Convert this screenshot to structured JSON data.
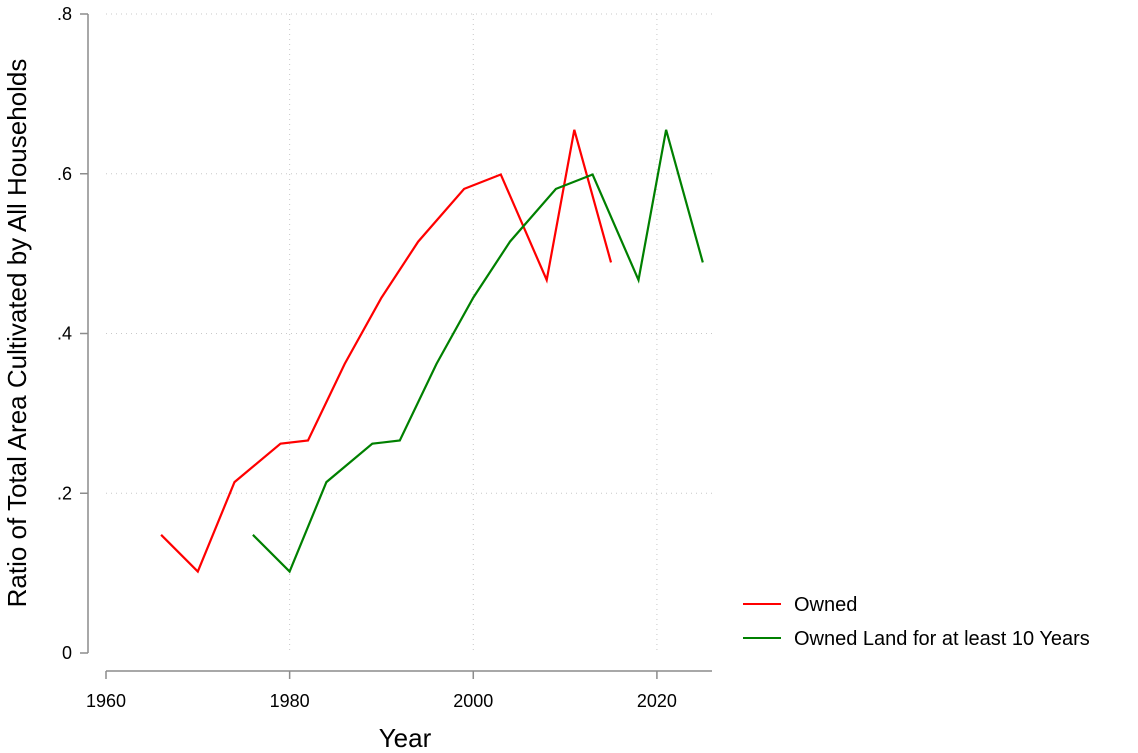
{
  "chart_data": {
    "type": "line",
    "xlabel": "Year",
    "ylabel": "Ratio of Total Area Cultivated by All Households",
    "xlim": [
      1960,
      2026
    ],
    "ylim": [
      0,
      0.8
    ],
    "x_ticks": [
      1960,
      1980,
      2000,
      2020
    ],
    "x_tick_labels": [
      "1960",
      "1980",
      "2000",
      "2020"
    ],
    "y_ticks": [
      0,
      0.2,
      0.4,
      0.6,
      0.8
    ],
    "y_tick_labels": [
      "0",
      ".2",
      ".4",
      ".6",
      ".8"
    ],
    "grid": true,
    "legend_position": "bottom-right",
    "series": [
      {
        "name": "Owned",
        "color": "#ff0000",
        "x": [
          1966,
          1970,
          1974,
          1979,
          1982,
          1986,
          1990,
          1994,
          1999,
          2003,
          2008,
          2011,
          2015
        ],
        "y": [
          0.148,
          0.102,
          0.214,
          0.262,
          0.266,
          0.362,
          0.445,
          0.515,
          0.581,
          0.599,
          0.467,
          0.655,
          0.489
        ]
      },
      {
        "name": "Owned Land for at least 10 Years",
        "color": "#008000",
        "x": [
          1976,
          1980,
          1984,
          1989,
          1992,
          1996,
          2000,
          2004,
          2009,
          2013,
          2018,
          2021,
          2025
        ],
        "y": [
          0.148,
          0.102,
          0.214,
          0.262,
          0.266,
          0.362,
          0.445,
          0.515,
          0.581,
          0.599,
          0.467,
          0.655,
          0.489
        ]
      }
    ]
  }
}
